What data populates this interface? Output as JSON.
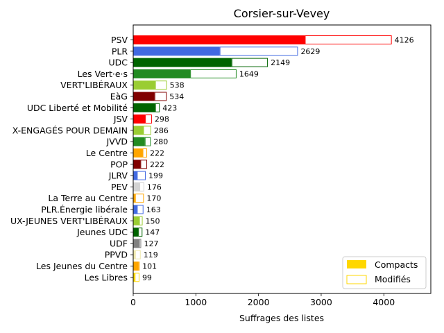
{
  "chart_data": {
    "type": "bar",
    "orientation": "horizontal",
    "stacked": true,
    "title": "Corsier-sur-Vevey",
    "xlabel": "Suffrages des listes",
    "ylabel": "",
    "xlim": [
      0,
      4750
    ],
    "xticks": [
      0,
      1000,
      2000,
      3000,
      4000
    ],
    "legend_position": "lower-right",
    "grid": false,
    "categories": [
      "PSV",
      "PLR",
      "UDC",
      "Les Vert·e·s",
      "VERT'LIBÉRAUX",
      "EàG",
      "UDC Liberté et Mobilité",
      "JSV",
      "JEUNES ET VIEUX-ENGAGÉS POUR DEMAIN",
      "JVVD",
      "Le Centre",
      "POP",
      "JLRV",
      "PEV",
      "La Terre au Centre",
      "PLR.Énergie libérale",
      "JEUNES VERT'LIBÉRAUX-JEUNES VERT'LIBÉRAUX",
      "Jeunes UDC",
      "UDF",
      "PPVD",
      "Les Jeunes du Centre",
      "Les Libres"
    ],
    "category_labels_visible": [
      "PSV",
      "PLR",
      "UDC",
      "Les Vert·e·s",
      "VERT'LIBÉRAUX",
      "EàG",
      "UDC Liberté et Mobilité",
      "JSV",
      "X-ENGAGÉS POUR DEMAIN",
      "JVVD",
      "Le Centre",
      "POP",
      "JLRV",
      "PEV",
      "La Terre au Centre",
      "PLR.Énergie libérale",
      "UX-JEUNES VERT'LIBÉRAUX",
      "Jeunes UDC",
      "UDF",
      "PPVD",
      "Les Jeunes du Centre",
      "Les Libres"
    ],
    "colors": [
      "#ff0000",
      "#4169e1",
      "#006400",
      "#228b22",
      "#9acd32",
      "#800000",
      "#006400",
      "#ff0000",
      "#9acd32",
      "#228b22",
      "#ffa500",
      "#800000",
      "#4169e1",
      "#d3d3d3",
      "#ffa500",
      "#4169e1",
      "#9acd32",
      "#006400",
      "#808080",
      "#eee8aa",
      "#ffa500",
      "#ffd700"
    ],
    "series": [
      {
        "name": "Compacts",
        "values": [
          2740,
          1380,
          1570,
          910,
          350,
          340,
          350,
          190,
          160,
          185,
          150,
          115,
          60,
          100,
          30,
          60,
          95,
          80,
          95,
          30,
          85,
          25
        ]
      },
      {
        "name": "Modifiés",
        "values": [
          1386,
          1249,
          579,
          739,
          188,
          194,
          73,
          108,
          126,
          95,
          72,
          107,
          139,
          76,
          140,
          103,
          55,
          67,
          32,
          89,
          16,
          74
        ]
      }
    ],
    "totals": [
      4126,
      2629,
      2149,
      1649,
      538,
      534,
      423,
      298,
      286,
      280,
      222,
      222,
      199,
      176,
      170,
      163,
      150,
      147,
      127,
      119,
      101,
      99
    ],
    "legend": {
      "compact_color": "#ffd700",
      "modified_color": "#ffd700"
    }
  }
}
